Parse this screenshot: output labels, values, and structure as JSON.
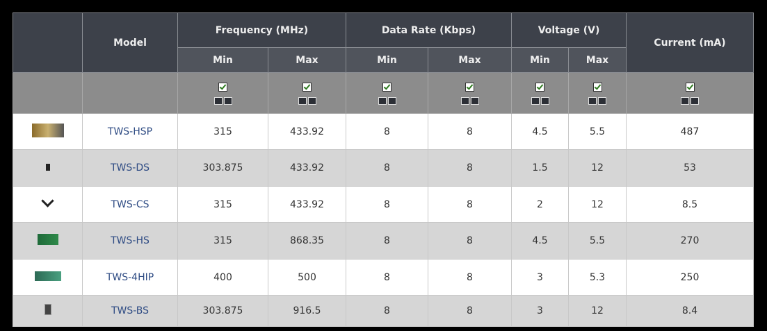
{
  "header": {
    "model": "Model",
    "groups": [
      {
        "label": "Frequency (MHz)",
        "sub": [
          "Min",
          "Max"
        ]
      },
      {
        "label": "Data Rate (Kbps)",
        "sub": [
          "Min",
          "Max"
        ]
      },
      {
        "label": "Voltage (V)",
        "sub": [
          "Min",
          "Max"
        ]
      }
    ],
    "current": "Current (mA)"
  },
  "table": {
    "rows": [
      [
        "TWS-HSP",
        "315",
        "433.92",
        "8",
        "8",
        "4.5",
        "5.5",
        "487"
      ],
      [
        "TWS-DS",
        "303.875",
        "433.92",
        "8",
        "8",
        "1.5",
        "12",
        "53"
      ],
      [
        "TWS-CS",
        "315",
        "433.92",
        "8",
        "8",
        "2",
        "12",
        "8.5"
      ],
      [
        "TWS-HS",
        "315",
        "868.35",
        "8",
        "8",
        "4.5",
        "5.5",
        "270"
      ],
      [
        "TWS-4HIP",
        "400",
        "500",
        "8",
        "8",
        "3",
        "5.3",
        "250"
      ],
      [
        "TWS-BS",
        "303.875",
        "916.5",
        "8",
        "8",
        "3",
        "12",
        "8.4"
      ]
    ]
  }
}
